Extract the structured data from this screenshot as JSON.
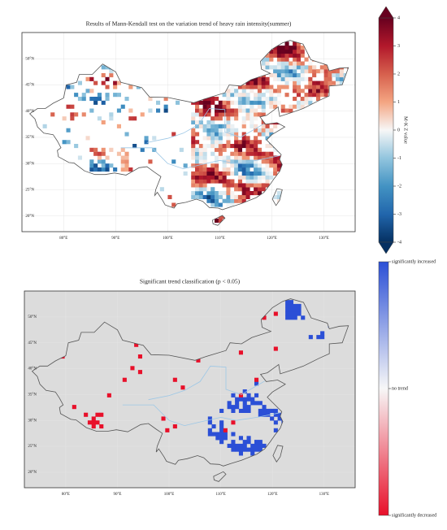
{
  "chart_data": [
    {
      "type": "map",
      "title": "Results of Mann-Kendall test on the variation trend of heavy rain intensity(summer)",
      "xlim": [
        72,
        136
      ],
      "ylim": [
        17,
        55
      ],
      "xticks": [
        {
          "value": 80,
          "label": "80°E"
        },
        {
          "value": 90,
          "label": "90°E"
        },
        {
          "value": 100,
          "label": "100°E"
        },
        {
          "value": 110,
          "label": "110°E"
        },
        {
          "value": 120,
          "label": "120°E"
        },
        {
          "value": 130,
          "label": "130°E"
        }
      ],
      "yticks": [
        {
          "value": 20,
          "label": "20°N"
        },
        {
          "value": 25,
          "label": "25°N"
        },
        {
          "value": 30,
          "label": "30°N"
        },
        {
          "value": 35,
          "label": "35°N"
        },
        {
          "value": 40,
          "label": "40°N"
        },
        {
          "value": 45,
          "label": "45°N"
        },
        {
          "value": 50,
          "label": "50°N"
        }
      ],
      "colorbar": {
        "label": "M-K Z value",
        "lim": [
          -4,
          4
        ],
        "ticks": [
          -4,
          -3,
          -2,
          -1,
          0,
          1,
          2,
          3,
          4
        ],
        "colors": [
          "#053061",
          "#2166ac",
          "#4393c3",
          "#92c5de",
          "#f7f7f7",
          "#f4a582",
          "#d6604d",
          "#b2182b",
          "#67001f"
        ]
      }
    },
    {
      "type": "map",
      "title": "Significant trend classification (p < 0.05)",
      "xlim": [
        72,
        136
      ],
      "ylim": [
        17,
        55
      ],
      "xticks": [
        {
          "value": 80,
          "label": "80°E"
        },
        {
          "value": 90,
          "label": "90°E"
        },
        {
          "value": 100,
          "label": "100°E"
        },
        {
          "value": 110,
          "label": "110°E"
        },
        {
          "value": 120,
          "label": "120°E"
        },
        {
          "value": 130,
          "label": "130°E"
        }
      ],
      "yticks": [
        {
          "value": 20,
          "label": "20°N"
        },
        {
          "value": 25,
          "label": "25°N"
        },
        {
          "value": 30,
          "label": "30°N"
        },
        {
          "value": 35,
          "label": "35°N"
        },
        {
          "value": 40,
          "label": "40°N"
        },
        {
          "value": 45,
          "label": "45°N"
        },
        {
          "value": 50,
          "label": "50°N"
        }
      ],
      "background": "#dcdcdc",
      "colorbar": {
        "labels": [
          "significantly increased",
          "no trend",
          "significantly decreased"
        ],
        "colors": [
          "#2b4fd6",
          "#f7f7f7",
          "#e8102a"
        ]
      }
    }
  ]
}
